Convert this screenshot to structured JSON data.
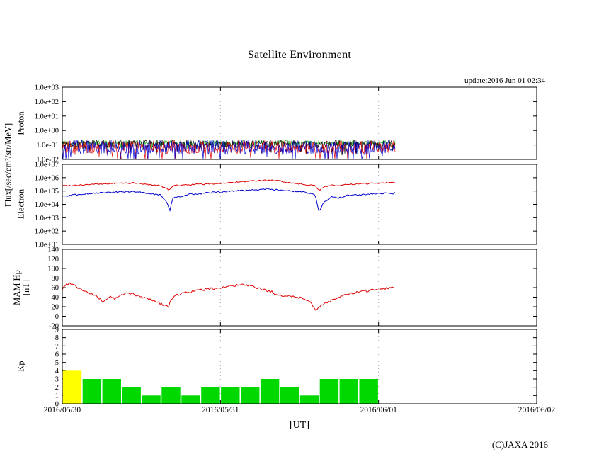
{
  "title": "Satellite Environment",
  "update_text": "update:2016 Jun 01 02:34",
  "xaxis_label": "[UT]",
  "copyright": "(C)JAXA 2016",
  "side_labels": {
    "proton": "Proton",
    "flux": "Flux[/sec/cm²/str/MeV]",
    "electron": "Electron",
    "mam_line1": "MAM Hp",
    "mam_line2": "[nT]",
    "kp": "Kp"
  },
  "colors": {
    "kp_green": "#00d800",
    "kp_yellow": "#ffff00",
    "line_red": "#dd0000",
    "line_blue": "#0000cc",
    "line_green": "#00aa00",
    "line_black": "#000000",
    "grid": "#aaaaaa"
  },
  "chart_data": {
    "type": "line",
    "title": "Satellite Environment",
    "xlabel": "[UT]",
    "x_ticks": [
      "2016/05/30",
      "2016/05/31",
      "2016/06/01",
      "2016/06/02"
    ],
    "x_range_days": [
      0,
      3
    ],
    "data_end_day": 2.107,
    "panels": [
      {
        "name": "Proton",
        "scale": "log",
        "ylim": [
          -2,
          3
        ],
        "yticks": [
          3,
          2,
          1,
          0,
          -1,
          -2
        ],
        "ytick_labels": [
          "1.0e+03",
          "1.0e+02",
          "1.0e+01",
          "1.0e+00",
          "1.0e-01",
          "1.0e-02"
        ],
        "x_end": 2.107,
        "noise_series": [
          {
            "name": "proton-ch-green",
            "color": "#00aa00",
            "base": -0.85,
            "amp": 0.15,
            "spike": 0.3
          },
          {
            "name": "proton-ch-black",
            "color": "#000000",
            "base": -0.95,
            "amp": 0.3,
            "spike": 0.5
          },
          {
            "name": "proton-ch-red",
            "color": "#dd0000",
            "base": -1.15,
            "amp": 0.45,
            "spike": 0.7
          },
          {
            "name": "proton-ch-blue",
            "color": "#0000cc",
            "base": -1.15,
            "amp": 0.5,
            "spike": 0.8
          }
        ]
      },
      {
        "name": "Electron",
        "scale": "log",
        "ylim": [
          1,
          7
        ],
        "yticks": [
          7,
          6,
          5,
          4,
          3,
          2,
          1
        ],
        "ytick_labels": [
          "1.0e+07",
          "1.0e+06",
          "1.0e+05",
          "1.0e+04",
          "1.0e+03",
          "1.0e+02",
          "1.0e+01"
        ],
        "series": [
          {
            "name": "electron-high",
            "color": "#dd0000",
            "noise_log": 0.05,
            "points": [
              [
                0,
                250000
              ],
              [
                0.1,
                280000
              ],
              [
                0.2,
                320000
              ],
              [
                0.35,
                380000
              ],
              [
                0.45,
                400000
              ],
              [
                0.55,
                300000
              ],
              [
                0.62,
                260000
              ],
              [
                0.66,
                150000
              ],
              [
                0.68,
                120000
              ],
              [
                0.7,
                250000
              ],
              [
                0.8,
                300000
              ],
              [
                0.9,
                330000
              ],
              [
                1.0,
                380000
              ],
              [
                1.1,
                450000
              ],
              [
                1.2,
                550000
              ],
              [
                1.3,
                650000
              ],
              [
                1.38,
                550000
              ],
              [
                1.45,
                400000
              ],
              [
                1.55,
                300000
              ],
              [
                1.6,
                250000
              ],
              [
                1.625,
                100000
              ],
              [
                1.65,
                200000
              ],
              [
                1.7,
                280000
              ],
              [
                1.75,
                250000
              ],
              [
                1.8,
                300000
              ],
              [
                1.9,
                350000
              ],
              [
                2.0,
                400000
              ],
              [
                2.107,
                450000
              ]
            ]
          },
          {
            "name": "electron-low",
            "color": "#0000cc",
            "noise_log": 0.06,
            "points": [
              [
                0,
                40000
              ],
              [
                0.1,
                55000
              ],
              [
                0.2,
                70000
              ],
              [
                0.35,
                85000
              ],
              [
                0.45,
                90000
              ],
              [
                0.55,
                70000
              ],
              [
                0.62,
                50000
              ],
              [
                0.66,
                15000
              ],
              [
                0.68,
                3500
              ],
              [
                0.7,
                30000
              ],
              [
                0.8,
                55000
              ],
              [
                0.9,
                70000
              ],
              [
                1.0,
                85000
              ],
              [
                1.1,
                100000
              ],
              [
                1.2,
                120000
              ],
              [
                1.3,
                140000
              ],
              [
                1.38,
                120000
              ],
              [
                1.45,
                95000
              ],
              [
                1.55,
                75000
              ],
              [
                1.6,
                50000
              ],
              [
                1.625,
                2500
              ],
              [
                1.65,
                12000
              ],
              [
                1.7,
                35000
              ],
              [
                1.75,
                30000
              ],
              [
                1.8,
                45000
              ],
              [
                1.9,
                55000
              ],
              [
                2.0,
                65000
              ],
              [
                2.107,
                70000
              ]
            ]
          }
        ]
      },
      {
        "name": "MAM Hp",
        "scale": "linear",
        "ylim": [
          -20,
          140
        ],
        "yticks": [
          140,
          120,
          100,
          80,
          60,
          40,
          20,
          0,
          -20
        ],
        "ytick_labels": [
          "140",
          "120",
          "100",
          "80",
          "60",
          "40",
          "20",
          "0",
          "-20"
        ],
        "series": [
          {
            "name": "mam-hp",
            "color": "#dd0000",
            "noise_lin": 2.5,
            "points": [
              [
                0,
                57
              ],
              [
                0.03,
                68
              ],
              [
                0.06,
                70
              ],
              [
                0.09,
                62
              ],
              [
                0.13,
                55
              ],
              [
                0.17,
                48
              ],
              [
                0.2,
                44
              ],
              [
                0.23,
                38
              ],
              [
                0.26,
                30
              ],
              [
                0.3,
                42
              ],
              [
                0.33,
                36
              ],
              [
                0.38,
                45
              ],
              [
                0.42,
                50
              ],
              [
                0.46,
                44
              ],
              [
                0.5,
                40
              ],
              [
                0.55,
                36
              ],
              [
                0.6,
                30
              ],
              [
                0.64,
                24
              ],
              [
                0.67,
                20
              ],
              [
                0.7,
                40
              ],
              [
                0.75,
                48
              ],
              [
                0.82,
                52
              ],
              [
                0.9,
                56
              ],
              [
                1.0,
                60
              ],
              [
                1.08,
                64
              ],
              [
                1.15,
                66
              ],
              [
                1.22,
                60
              ],
              [
                1.28,
                55
              ],
              [
                1.32,
                52
              ],
              [
                1.36,
                42
              ],
              [
                1.42,
                44
              ],
              [
                1.48,
                40
              ],
              [
                1.52,
                38
              ],
              [
                1.56,
                34
              ],
              [
                1.6,
                12
              ],
              [
                1.63,
                20
              ],
              [
                1.66,
                28
              ],
              [
                1.7,
                33
              ],
              [
                1.75,
                40
              ],
              [
                1.82,
                47
              ],
              [
                1.9,
                52
              ],
              [
                1.98,
                56
              ],
              [
                2.05,
                59
              ],
              [
                2.107,
                61
              ]
            ]
          }
        ]
      },
      {
        "name": "Kp",
        "scale": "linear",
        "ylim": [
          0,
          9
        ],
        "yticks": [
          9,
          8,
          7,
          6,
          5,
          4,
          3,
          2,
          1,
          0
        ],
        "ytick_labels": [
          "9",
          "8",
          "7",
          "6",
          "5",
          "4",
          "3",
          "2",
          "1",
          "0"
        ],
        "bar_interval_hours": 3,
        "bars": [
          {
            "v": 4,
            "c": "#ffff00"
          },
          {
            "v": 3,
            "c": "#00d800"
          },
          {
            "v": 3,
            "c": "#00d800"
          },
          {
            "v": 2,
            "c": "#00d800"
          },
          {
            "v": 1,
            "c": "#00d800"
          },
          {
            "v": 2,
            "c": "#00d800"
          },
          {
            "v": 1,
            "c": "#00d800"
          },
          {
            "v": 2,
            "c": "#00d800"
          },
          {
            "v": 2,
            "c": "#00d800"
          },
          {
            "v": 2,
            "c": "#00d800"
          },
          {
            "v": 3,
            "c": "#00d800"
          },
          {
            "v": 2,
            "c": "#00d800"
          },
          {
            "v": 1,
            "c": "#00d800"
          },
          {
            "v": 3,
            "c": "#00d800"
          },
          {
            "v": 3,
            "c": "#00d800"
          },
          {
            "v": 3,
            "c": "#00d800"
          }
        ]
      }
    ]
  }
}
